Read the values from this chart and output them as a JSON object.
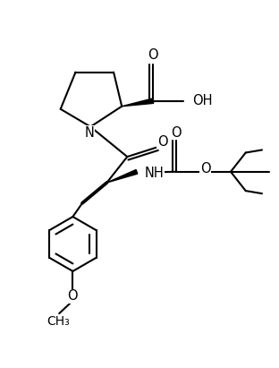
{
  "bg": "#ffffff",
  "lc": "#000000",
  "lw": 1.5,
  "fs": 9.5,
  "fig_w": 3.12,
  "fig_h": 4.11,
  "dpi": 100,
  "xlim": [
    0,
    10
  ],
  "ylim": [
    0,
    13.5
  ]
}
